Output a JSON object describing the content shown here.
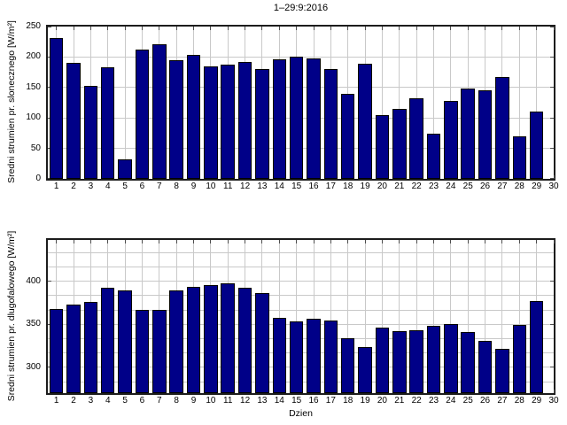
{
  "title": "1–29:9:2016",
  "colors": {
    "bar_fill": "#000088",
    "bar_edge": "#000000",
    "grid": "#c9c9c9",
    "axis_frame": "#1c1c1c",
    "tick": "#4d4d4d",
    "background": "#ffffff",
    "text": "#000000"
  },
  "chart_data": [
    {
      "type": "bar",
      "title": "1–29:9:2016",
      "ylabel": "Sredni strumien pr. slonecznego [W/m²]",
      "xlabel": "",
      "categories": [
        1,
        2,
        3,
        4,
        5,
        6,
        7,
        8,
        9,
        10,
        11,
        12,
        13,
        14,
        15,
        16,
        17,
        18,
        19,
        20,
        21,
        22,
        23,
        24,
        25,
        26,
        27,
        28,
        29
      ],
      "values": [
        231,
        191,
        153,
        183,
        32,
        212,
        221,
        195,
        203,
        184,
        188,
        192,
        180,
        196,
        200,
        197,
        180,
        139,
        189,
        104,
        115,
        133,
        74,
        128,
        148,
        145,
        167,
        70,
        110
      ],
      "ylim": [
        0,
        250
      ],
      "yticks": [
        0,
        50,
        100,
        150,
        200,
        250
      ],
      "xticks": [
        1,
        2,
        3,
        4,
        5,
        6,
        7,
        8,
        9,
        10,
        11,
        12,
        13,
        14,
        15,
        16,
        17,
        18,
        19,
        20,
        21,
        22,
        23,
        24,
        25,
        26,
        27,
        28,
        29,
        30
      ],
      "ygrid": [
        50,
        100,
        150,
        200
      ],
      "grid": "on",
      "legend": "none"
    },
    {
      "type": "bar",
      "title": "",
      "ylabel": "Sredni strumien pr. dlugofalowego [W/m²]",
      "xlabel": "Dzien",
      "categories": [
        1,
        2,
        3,
        4,
        5,
        6,
        7,
        8,
        9,
        10,
        11,
        12,
        13,
        14,
        15,
        16,
        17,
        18,
        19,
        20,
        21,
        22,
        23,
        24,
        25,
        26,
        27,
        28,
        29
      ],
      "values": [
        368,
        373,
        376,
        392,
        389,
        367,
        367,
        389,
        393,
        396,
        398,
        392,
        386,
        357,
        353,
        356,
        354,
        334,
        324,
        346,
        342,
        343,
        348,
        350,
        341,
        331,
        321,
        349,
        377
      ],
      "ylim": [
        270,
        448
      ],
      "yticks": [
        300,
        350,
        400
      ],
      "xticks": [
        1,
        2,
        3,
        4,
        5,
        6,
        7,
        8,
        9,
        10,
        11,
        12,
        13,
        14,
        15,
        16,
        17,
        18,
        19,
        20,
        21,
        22,
        23,
        24,
        25,
        26,
        27,
        28,
        29,
        30
      ],
      "ygrid": [
        283.33,
        300,
        316.67,
        333.33,
        350,
        366.67,
        383.33,
        400,
        416.67,
        433.33
      ],
      "grid": "minor",
      "legend": "none"
    }
  ]
}
